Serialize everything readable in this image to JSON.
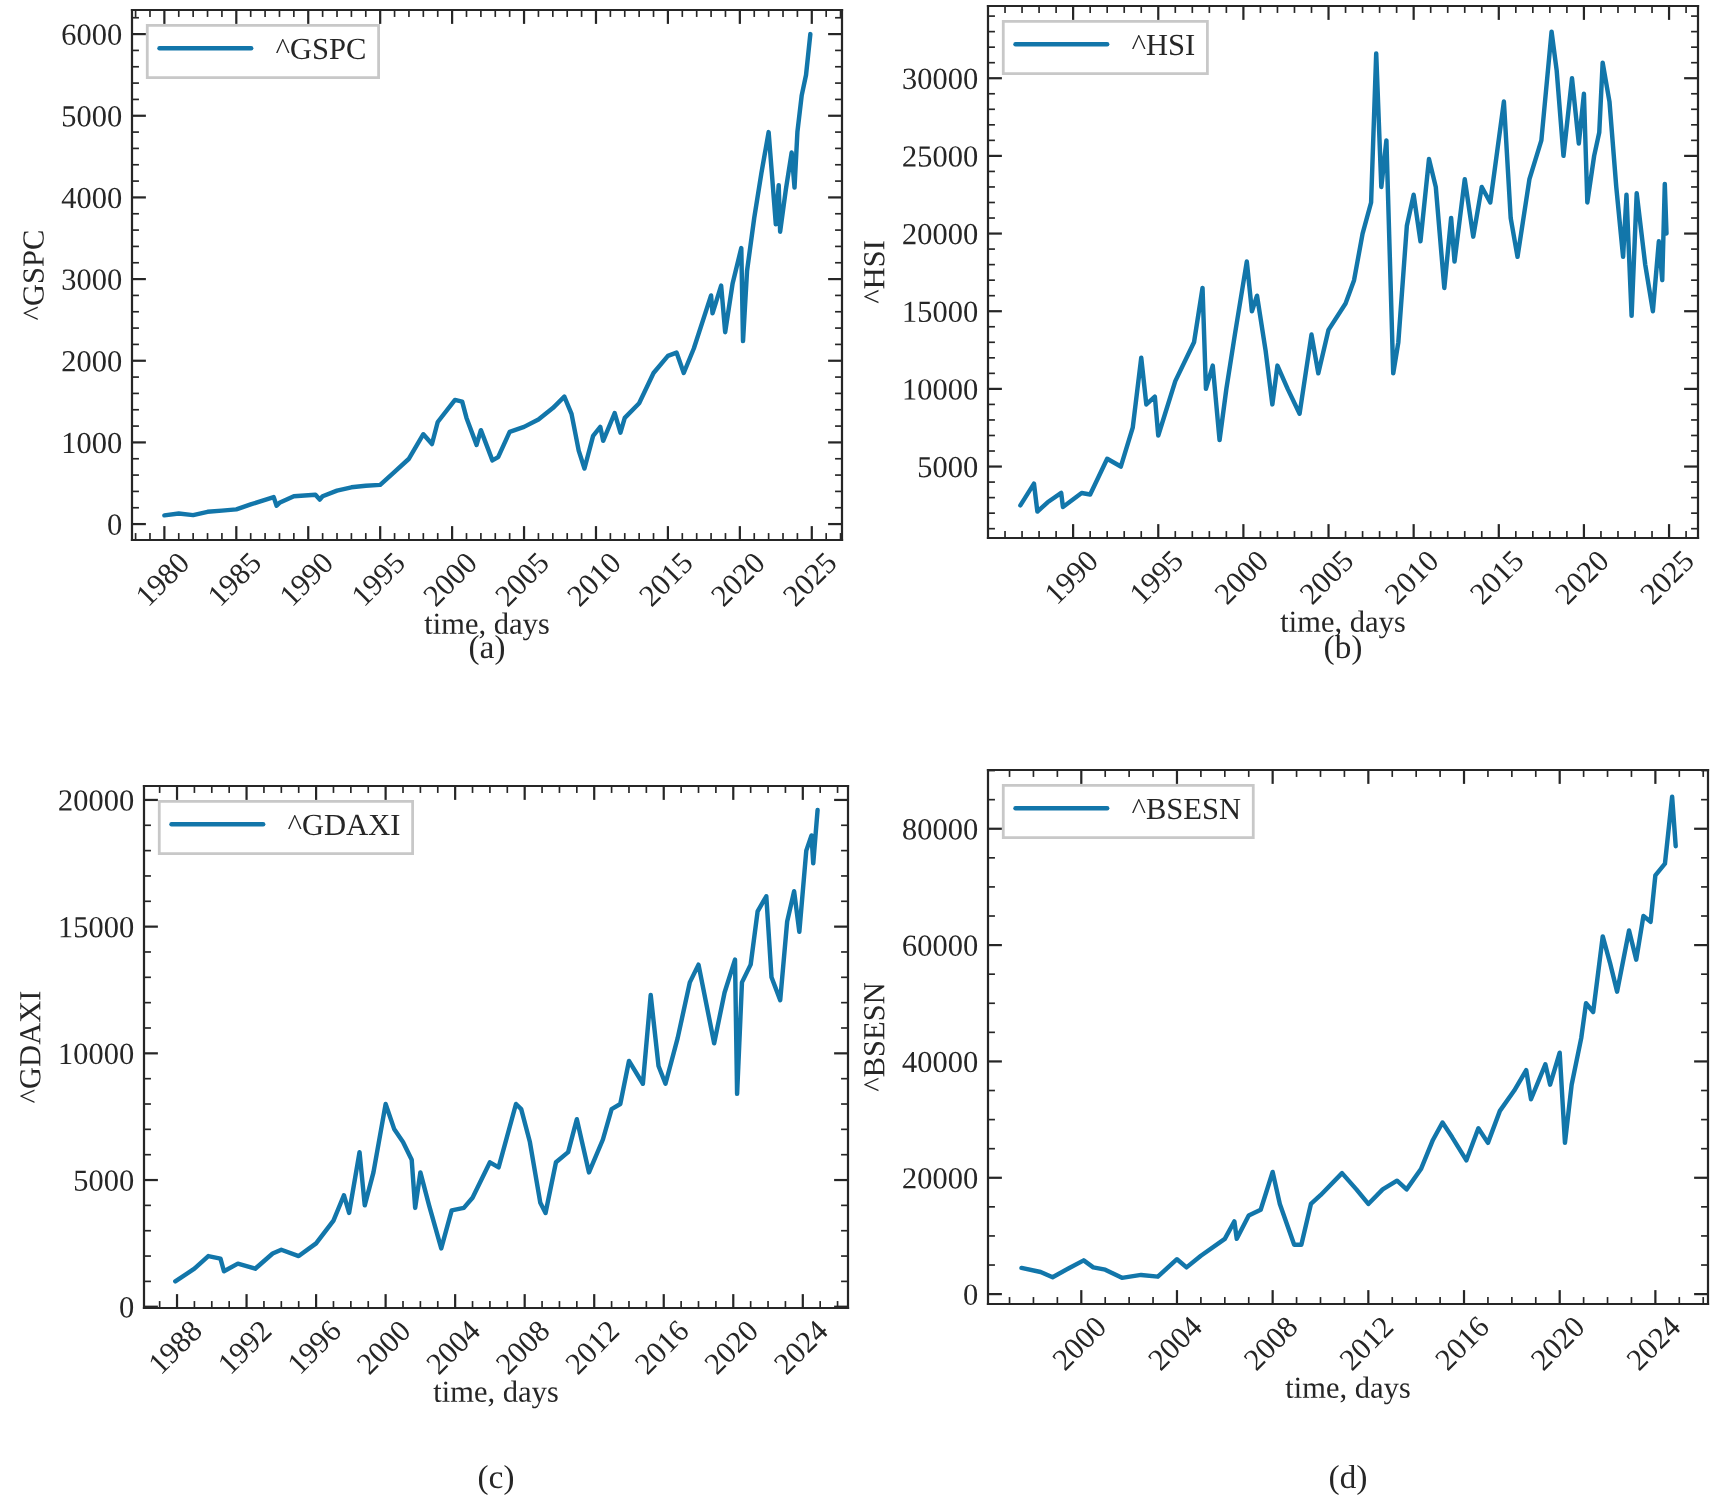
{
  "chart_data": [
    {
      "type": "line",
      "xlabel": "time, days",
      "ylabel": "^GSPC",
      "annotations": [
        "(a)"
      ],
      "legend": "top left",
      "xlim": [
        1977.75,
        2027.1
      ],
      "ylim": [
        -195,
        6295
      ],
      "xticks": [
        1980,
        1985,
        1990,
        1995,
        2000,
        2005,
        2010,
        2015,
        2020,
        2025
      ],
      "yticks": [
        0,
        1000,
        2000,
        3000,
        4000,
        5000,
        6000
      ],
      "series": [
        {
          "name": "^GSPC",
          "color": "#1276aa",
          "x": [
            1980,
            1981,
            1982,
            1983,
            1984,
            1985,
            1986,
            1987.6,
            1987.8,
            1988,
            1989,
            1990.5,
            1990.8,
            1991,
            1992,
            1993,
            1994,
            1995,
            1996,
            1997,
            1998,
            1998.6,
            1999,
            2000.2,
            2000.7,
            2001,
            2001.7,
            2002,
            2002.8,
            2003.2,
            2004,
            2005,
            2006,
            2007,
            2007.8,
            2008.3,
            2008.8,
            2009.2,
            2009.8,
            2010.3,
            2010.5,
            2011.3,
            2011.7,
            2012,
            2013,
            2014,
            2015,
            2015.6,
            2016.1,
            2016.8,
            2018,
            2018.1,
            2018.7,
            2018.98,
            2019.5,
            2020.1,
            2020.22,
            2020.5,
            2021,
            2021.5,
            2022.0,
            2022.4,
            2022.5,
            2022.7,
            2022.8,
            2023.2,
            2023.6,
            2023.8,
            2024.0,
            2024.3,
            2024.6,
            2024.9
          ],
          "values": [
            107,
            130,
            110,
            150,
            165,
            180,
            240,
            330,
            225,
            260,
            340,
            360,
            300,
            340,
            410,
            450,
            470,
            480,
            640,
            800,
            1100,
            980,
            1250,
            1520,
            1500,
            1300,
            970,
            1150,
            780,
            820,
            1130,
            1190,
            1280,
            1420,
            1560,
            1350,
            900,
            680,
            1080,
            1190,
            1020,
            1360,
            1120,
            1300,
            1480,
            1850,
            2060,
            2100,
            1850,
            2150,
            2800,
            2580,
            2920,
            2350,
            2950,
            3380,
            2240,
            3100,
            3750,
            4300,
            4800,
            3900,
            3670,
            4150,
            3580,
            4100,
            4550,
            4120,
            4800,
            5250,
            5500,
            6000
          ]
        }
      ]
    },
    {
      "type": "line",
      "xlabel": "time, days",
      "ylabel": "^HSI",
      "annotations": [
        "(b)"
      ],
      "legend": "top left",
      "xlim": [
        1985.0,
        2026.7
      ],
      "ylim": [
        400,
        34650
      ],
      "xticks": [
        1990,
        1995,
        2000,
        2005,
        2010,
        2015,
        2020,
        2025
      ],
      "yticks": [
        5000,
        10000,
        15000,
        20000,
        25000,
        30000
      ],
      "series": [
        {
          "name": "^HSI",
          "color": "#1276aa",
          "x": [
            1986.9,
            1987.7,
            1987.9,
            1988.5,
            1989.3,
            1989.4,
            1990.5,
            1991,
            1992,
            1992.8,
            1993.5,
            1994.0,
            1994.3,
            1994.8,
            1995.0,
            1996,
            1997.1,
            1997.6,
            1997.8,
            1998.2,
            1998.6,
            1999,
            1999.5,
            2000.2,
            2000.5,
            2000.8,
            2001.3,
            2001.7,
            2002.0,
            2002.6,
            2003.3,
            2004.0,
            2004.4,
            2005,
            2006,
            2006.5,
            2007.0,
            2007.5,
            2007.8,
            2008.1,
            2008.4,
            2008.8,
            2009.1,
            2009.6,
            2010,
            2010.4,
            2010.9,
            2011.3,
            2011.8,
            2012.2,
            2012.4,
            2013.0,
            2013.5,
            2014,
            2014.5,
            2015.3,
            2015.7,
            2016.1,
            2016.8,
            2017.5,
            2018.1,
            2018.4,
            2018.8,
            2019.3,
            2019.7,
            2020.0,
            2020.2,
            2020.6,
            2020.9,
            2021.1,
            2021.5,
            2021.9,
            2022.3,
            2022.5,
            2022.8,
            2023.1,
            2023.6,
            2024.05,
            2024.4,
            2024.6,
            2024.75,
            2024.85
          ],
          "values": [
            2500,
            3900,
            2100,
            2700,
            3300,
            2400,
            3300,
            3200,
            5500,
            5000,
            7500,
            12000,
            9000,
            9500,
            7000,
            10500,
            13000,
            16500,
            10000,
            11500,
            6700,
            10000,
            13500,
            18200,
            15000,
            16000,
            12500,
            9000,
            11500,
            10000,
            8400,
            13500,
            11000,
            13800,
            15500,
            17000,
            20000,
            22000,
            31600,
            23000,
            26000,
            11000,
            13000,
            20500,
            22500,
            19500,
            24800,
            23000,
            16500,
            21000,
            18200,
            23500,
            19800,
            23000,
            22000,
            28500,
            21000,
            18500,
            23500,
            26000,
            33000,
            30500,
            25000,
            30000,
            25800,
            29000,
            22000,
            25000,
            26500,
            31000,
            28500,
            23000,
            18500,
            22500,
            14700,
            22600,
            18000,
            15000,
            19500,
            17000,
            23200,
            20000
          ]
        }
      ]
    },
    {
      "type": "line",
      "xlabel": "time, days",
      "ylabel": "^GDAXI",
      "annotations": [
        "(c)"
      ],
      "legend": "top left",
      "xlim": [
        1986.1,
        2026.6
      ],
      "ylim": [
        -50,
        20550
      ],
      "xticks": [
        1988,
        1992,
        1996,
        2000,
        2004,
        2008,
        2012,
        2016,
        2020,
        2024
      ],
      "yticks": [
        0,
        5000,
        10000,
        15000,
        20000
      ],
      "series": [
        {
          "name": "^GDAXI",
          "color": "#1276aa",
          "x": [
            1987.9,
            1989,
            1989.8,
            1990.5,
            1990.7,
            1991.5,
            1992.5,
            1993.5,
            1994.0,
            1995,
            1996,
            1997,
            1997.6,
            1997.9,
            1998.5,
            1998.8,
            1999.3,
            2000.0,
            2000.5,
            2001.0,
            2001.5,
            2001.7,
            2002.0,
            2002.5,
            2003.2,
            2003.8,
            2004.5,
            2005,
            2006,
            2006.5,
            2007.5,
            2007.8,
            2008.3,
            2008.9,
            2009.2,
            2009.8,
            2010.5,
            2011.0,
            2011.7,
            2012.5,
            2013.0,
            2013.5,
            2014.0,
            2014.8,
            2015.25,
            2015.7,
            2016.1,
            2016.8,
            2017.5,
            2018.0,
            2018.9,
            2019.5,
            2020.1,
            2020.22,
            2020.5,
            2021.0,
            2021.4,
            2021.9,
            2022.2,
            2022.7,
            2023.1,
            2023.5,
            2023.8,
            2024.2,
            2024.5,
            2024.6,
            2024.85
          ],
          "values": [
            1000,
            1500,
            2000,
            1900,
            1400,
            1700,
            1500,
            2100,
            2250,
            2000,
            2500,
            3400,
            4400,
            3700,
            6100,
            4000,
            5300,
            8000,
            7000,
            6500,
            5800,
            3900,
            5300,
            4000,
            2300,
            3800,
            3900,
            4300,
            5700,
            5500,
            8000,
            7800,
            6500,
            4100,
            3700,
            5700,
            6100,
            7400,
            5300,
            6600,
            7800,
            8000,
            9700,
            8800,
            12300,
            9500,
            8800,
            10600,
            12800,
            13500,
            10400,
            12400,
            13700,
            8400,
            12800,
            13500,
            15600,
            16200,
            13000,
            12100,
            15200,
            16400,
            14800,
            18000,
            18600,
            17500,
            19600
          ]
        }
      ]
    },
    {
      "type": "line",
      "xlabel": "time, days",
      "ylabel": "^BSESN",
      "annotations": [
        "(d)"
      ],
      "legend": "top left",
      "xlim": [
        1996.1,
        2026.2
      ],
      "ylim": [
        -1700,
        90100
      ],
      "xticks": [
        2000,
        2004,
        2008,
        2012,
        2016,
        2020,
        2024
      ],
      "yticks": [
        0,
        20000,
        40000,
        60000,
        80000
      ],
      "series": [
        {
          "name": "^BSESN",
          "color": "#1276aa",
          "x": [
            1997.5,
            1998.3,
            1998.8,
            1999.5,
            2000.1,
            2000.5,
            2001.0,
            2001.7,
            2002.5,
            2003.2,
            2004.0,
            2004.4,
            2005.0,
            2006.0,
            2006.4,
            2006.5,
            2007.0,
            2007.5,
            2008.0,
            2008.3,
            2008.9,
            2009.2,
            2009.6,
            2010.0,
            2010.9,
            2011.5,
            2012.0,
            2012.6,
            2013.2,
            2013.6,
            2014.2,
            2014.7,
            2015.1,
            2015.5,
            2016.1,
            2016.6,
            2017.0,
            2017.5,
            2018.1,
            2018.6,
            2018.8,
            2019.4,
            2019.6,
            2020.0,
            2020.22,
            2020.5,
            2020.9,
            2021.1,
            2021.4,
            2021.8,
            2022.1,
            2022.4,
            2022.9,
            2023.2,
            2023.5,
            2023.8,
            2024.0,
            2024.4,
            2024.7,
            2024.85
          ],
          "values": [
            4500,
            3800,
            2900,
            4500,
            5800,
            4600,
            4200,
            2800,
            3300,
            3000,
            6000,
            4600,
            6600,
            9500,
            12500,
            9500,
            13500,
            14500,
            21000,
            15500,
            8500,
            8500,
            15500,
            17000,
            20800,
            18000,
            15500,
            18000,
            19500,
            18000,
            21500,
            26500,
            29500,
            27000,
            23000,
            28500,
            26000,
            31500,
            35000,
            38500,
            33500,
            39500,
            36000,
            41500,
            26000,
            36000,
            44000,
            50000,
            48500,
            61500,
            57000,
            52000,
            62500,
            57500,
            65000,
            64000,
            72000,
            74000,
            85500,
            77000
          ]
        }
      ]
    }
  ]
}
